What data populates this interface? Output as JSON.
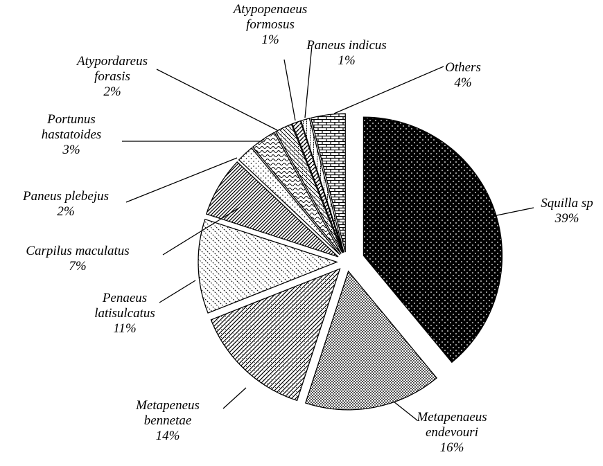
{
  "chart_data": {
    "type": "pie",
    "categories": [
      "Squilla sp",
      "Metapenaeus endevouri",
      "Metapeneus bennetae",
      "Penaeus latisulcatus",
      "Carpilus maculatus",
      "Paneus plebejus",
      "Portunus hastatoides",
      "Atypordareus forasis",
      "Atypopenaeus formosus",
      "Paneus indicus",
      "Others"
    ],
    "values": [
      39,
      16,
      14,
      11,
      7,
      2,
      3,
      2,
      1,
      1,
      4
    ],
    "value_labels": [
      "39%",
      "16%",
      "14%",
      "11%",
      "7%",
      "2%",
      "3%",
      "2%",
      "1%",
      "1%",
      "4%"
    ]
  }
}
